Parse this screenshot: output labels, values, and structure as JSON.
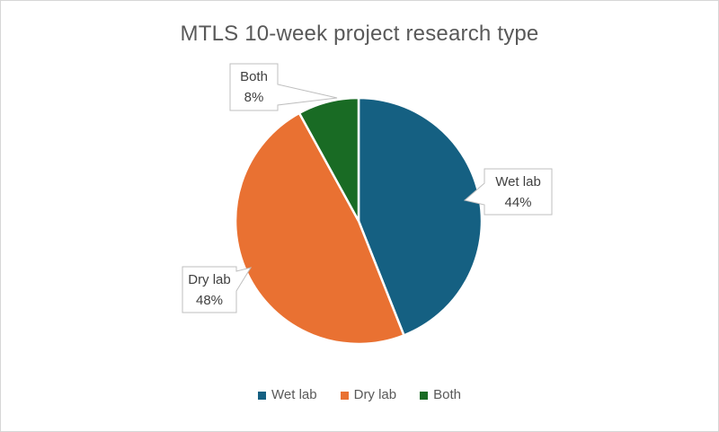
{
  "title": "MTLS 10-week project research type",
  "chart_data": {
    "type": "pie",
    "title": "MTLS 10-week project research type",
    "categories": [
      "Wet lab",
      "Dry lab",
      "Both"
    ],
    "values": [
      44,
      48,
      8
    ],
    "value_unit": "percent",
    "colors": [
      "#156082",
      "#E97132",
      "#196B24"
    ],
    "slice_border_color": "#FFFFFF",
    "start_angle_deg": 0,
    "direction": "clockwise",
    "legend_position": "bottom",
    "data_labels": [
      {
        "category": "Wet lab",
        "line1": "Wet lab",
        "line2": "44%"
      },
      {
        "category": "Dry lab",
        "line1": "Dry lab",
        "line2": "48%"
      },
      {
        "category": "Both",
        "line1": "Both",
        "line2": "8%"
      }
    ]
  },
  "callouts": [
    {
      "name": "both",
      "line1": "Both",
      "line2": "8%"
    },
    {
      "name": "wet-lab",
      "line1": "Wet lab",
      "line2": "44%"
    },
    {
      "name": "dry-lab",
      "line1": "Dry lab",
      "line2": "48%"
    }
  ],
  "legend": {
    "items": [
      {
        "label": "Wet lab",
        "color": "#156082"
      },
      {
        "label": "Dry lab",
        "color": "#E97132"
      },
      {
        "label": "Both",
        "color": "#196B24"
      }
    ]
  },
  "style": {
    "callout_border": "#BFBFBF",
    "callout_fill": "#FFFFFF",
    "title_color": "#595959",
    "text_color": "#404040",
    "frame_border": "#D6D6D6"
  }
}
